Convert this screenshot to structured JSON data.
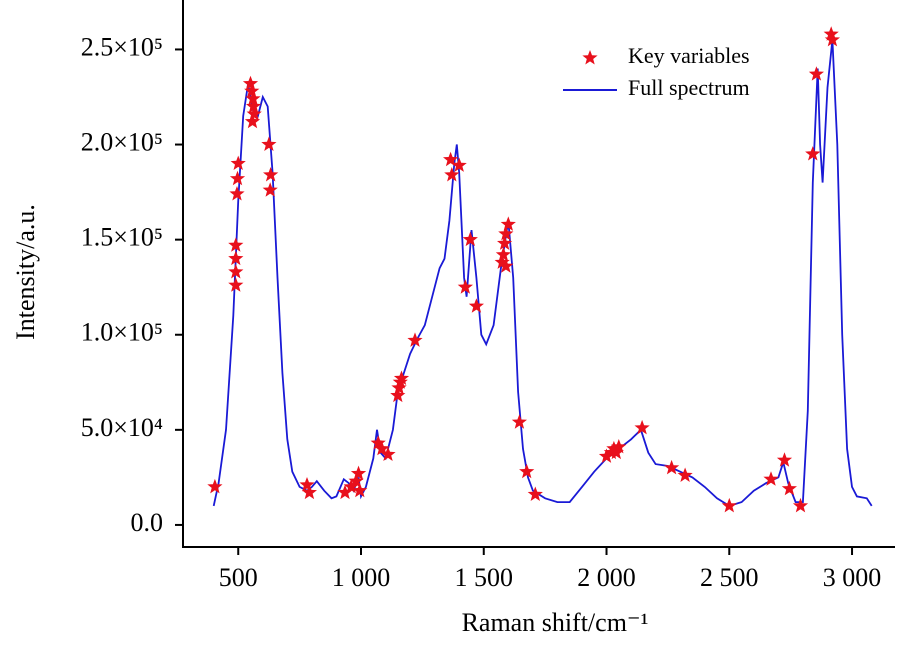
{
  "chart_data": {
    "type": "line_scatter",
    "xlabel": "Raman shift/cm⁻¹",
    "ylabel": "Intensity/a.u.",
    "xlim": [
      275,
      3175
    ],
    "ylim": [
      -11600,
      276000
    ],
    "xticks": [
      500,
      {
        "value": 1000,
        "label": "1 000"
      },
      {
        "value": 1500,
        "label": "1 500"
      },
      {
        "value": 2000,
        "label": "2 000"
      },
      {
        "value": 2500,
        "label": "2 500"
      },
      {
        "value": 3000,
        "label": "3 000"
      }
    ],
    "yticks": [
      {
        "value": 0,
        "label": "0.0"
      },
      {
        "value": 50000,
        "label": "5.0×10⁴"
      },
      {
        "value": 100000,
        "label": "1.0×10⁵"
      },
      {
        "value": 150000,
        "label": "1.5×10⁵"
      },
      {
        "value": 200000,
        "label": "2.0×10⁵"
      },
      {
        "value": 250000,
        "label": "2.5×10⁵"
      }
    ],
    "legend": "upper right",
    "series": [
      {
        "name": "Key variables",
        "kind": "scatter",
        "color": "#e8101c",
        "x": [
          405,
          490,
          490,
          490,
          490,
          495,
          497,
          500,
          550,
          555,
          560,
          562,
          565,
          558,
          625,
          632,
          630,
          780,
          790,
          935,
          960,
          980,
          990,
          995,
          1070,
          1085,
          1110,
          1150,
          1155,
          1160,
          1165,
          1220,
          1365,
          1370,
          1400,
          1425,
          1445,
          1470,
          1575,
          1580,
          1585,
          1590,
          1600,
          1590,
          1645,
          1675,
          1710,
          2000,
          2020,
          2030,
          2040,
          2050,
          2145,
          2265,
          2320,
          2500,
          2670,
          2725,
          2745,
          2790,
          2840,
          2855,
          2915,
          2920
        ],
        "values": [
          20000,
          126000,
          133000,
          140000,
          147000,
          174000,
          182000,
          190000,
          232000,
          228000,
          224000,
          220000,
          216000,
          212000,
          200000,
          184000,
          176000,
          21000,
          17000,
          17000,
          20000,
          23000,
          27000,
          18000,
          43000,
          40000,
          37000,
          68000,
          72000,
          75000,
          77000,
          97000,
          192000,
          184000,
          189000,
          125000,
          150000,
          115000,
          138000,
          142000,
          148000,
          153000,
          158000,
          136000,
          54000,
          28000,
          16000,
          36000,
          38000,
          40000,
          38000,
          41000,
          51000,
          30000,
          26000,
          10000,
          24000,
          34000,
          19000,
          10000,
          195000,
          237000,
          258000,
          255000
        ]
      },
      {
        "name": "Full spectrum",
        "kind": "line",
        "color": "#1a1ad6",
        "x": [
          400,
          420,
          450,
          480,
          500,
          520,
          540,
          560,
          580,
          600,
          620,
          640,
          660,
          680,
          700,
          720,
          750,
          780,
          800,
          820,
          850,
          880,
          900,
          930,
          950,
          970,
          990,
          1000,
          1020,
          1050,
          1065,
          1080,
          1100,
          1130,
          1150,
          1170,
          1200,
          1230,
          1260,
          1290,
          1320,
          1340,
          1360,
          1380,
          1390,
          1400,
          1420,
          1430,
          1450,
          1470,
          1490,
          1510,
          1540,
          1570,
          1600,
          1620,
          1640,
          1660,
          1680,
          1700,
          1750,
          1800,
          1850,
          1900,
          1950,
          2000,
          2050,
          2100,
          2140,
          2170,
          2200,
          2250,
          2300,
          2350,
          2400,
          2450,
          2500,
          2550,
          2600,
          2650,
          2700,
          2720,
          2740,
          2770,
          2800,
          2820,
          2840,
          2860,
          2870,
          2880,
          2900,
          2920,
          2940,
          2960,
          2980,
          3000,
          3020,
          3060,
          3080
        ],
        "values": [
          10000,
          22000,
          50000,
          110000,
          170000,
          215000,
          232000,
          218000,
          215000,
          225000,
          220000,
          185000,
          130000,
          80000,
          45000,
          28000,
          20000,
          18000,
          20000,
          23000,
          18000,
          14000,
          15000,
          24000,
          22000,
          18000,
          25000,
          15000,
          20000,
          35000,
          50000,
          38000,
          35000,
          50000,
          70000,
          78000,
          90000,
          98000,
          105000,
          120000,
          135000,
          140000,
          160000,
          190000,
          200000,
          185000,
          130000,
          120000,
          155000,
          130000,
          100000,
          95000,
          105000,
          135000,
          160000,
          130000,
          70000,
          40000,
          25000,
          18000,
          14000,
          12000,
          12000,
          20000,
          28000,
          35000,
          40000,
          45000,
          50000,
          38000,
          32000,
          31000,
          28000,
          25000,
          20000,
          14000,
          10000,
          12000,
          18000,
          22000,
          25000,
          33000,
          22000,
          12000,
          12000,
          60000,
          180000,
          240000,
          200000,
          180000,
          230000,
          255000,
          200000,
          100000,
          40000,
          20000,
          15000,
          14000,
          10000
        ]
      }
    ]
  }
}
